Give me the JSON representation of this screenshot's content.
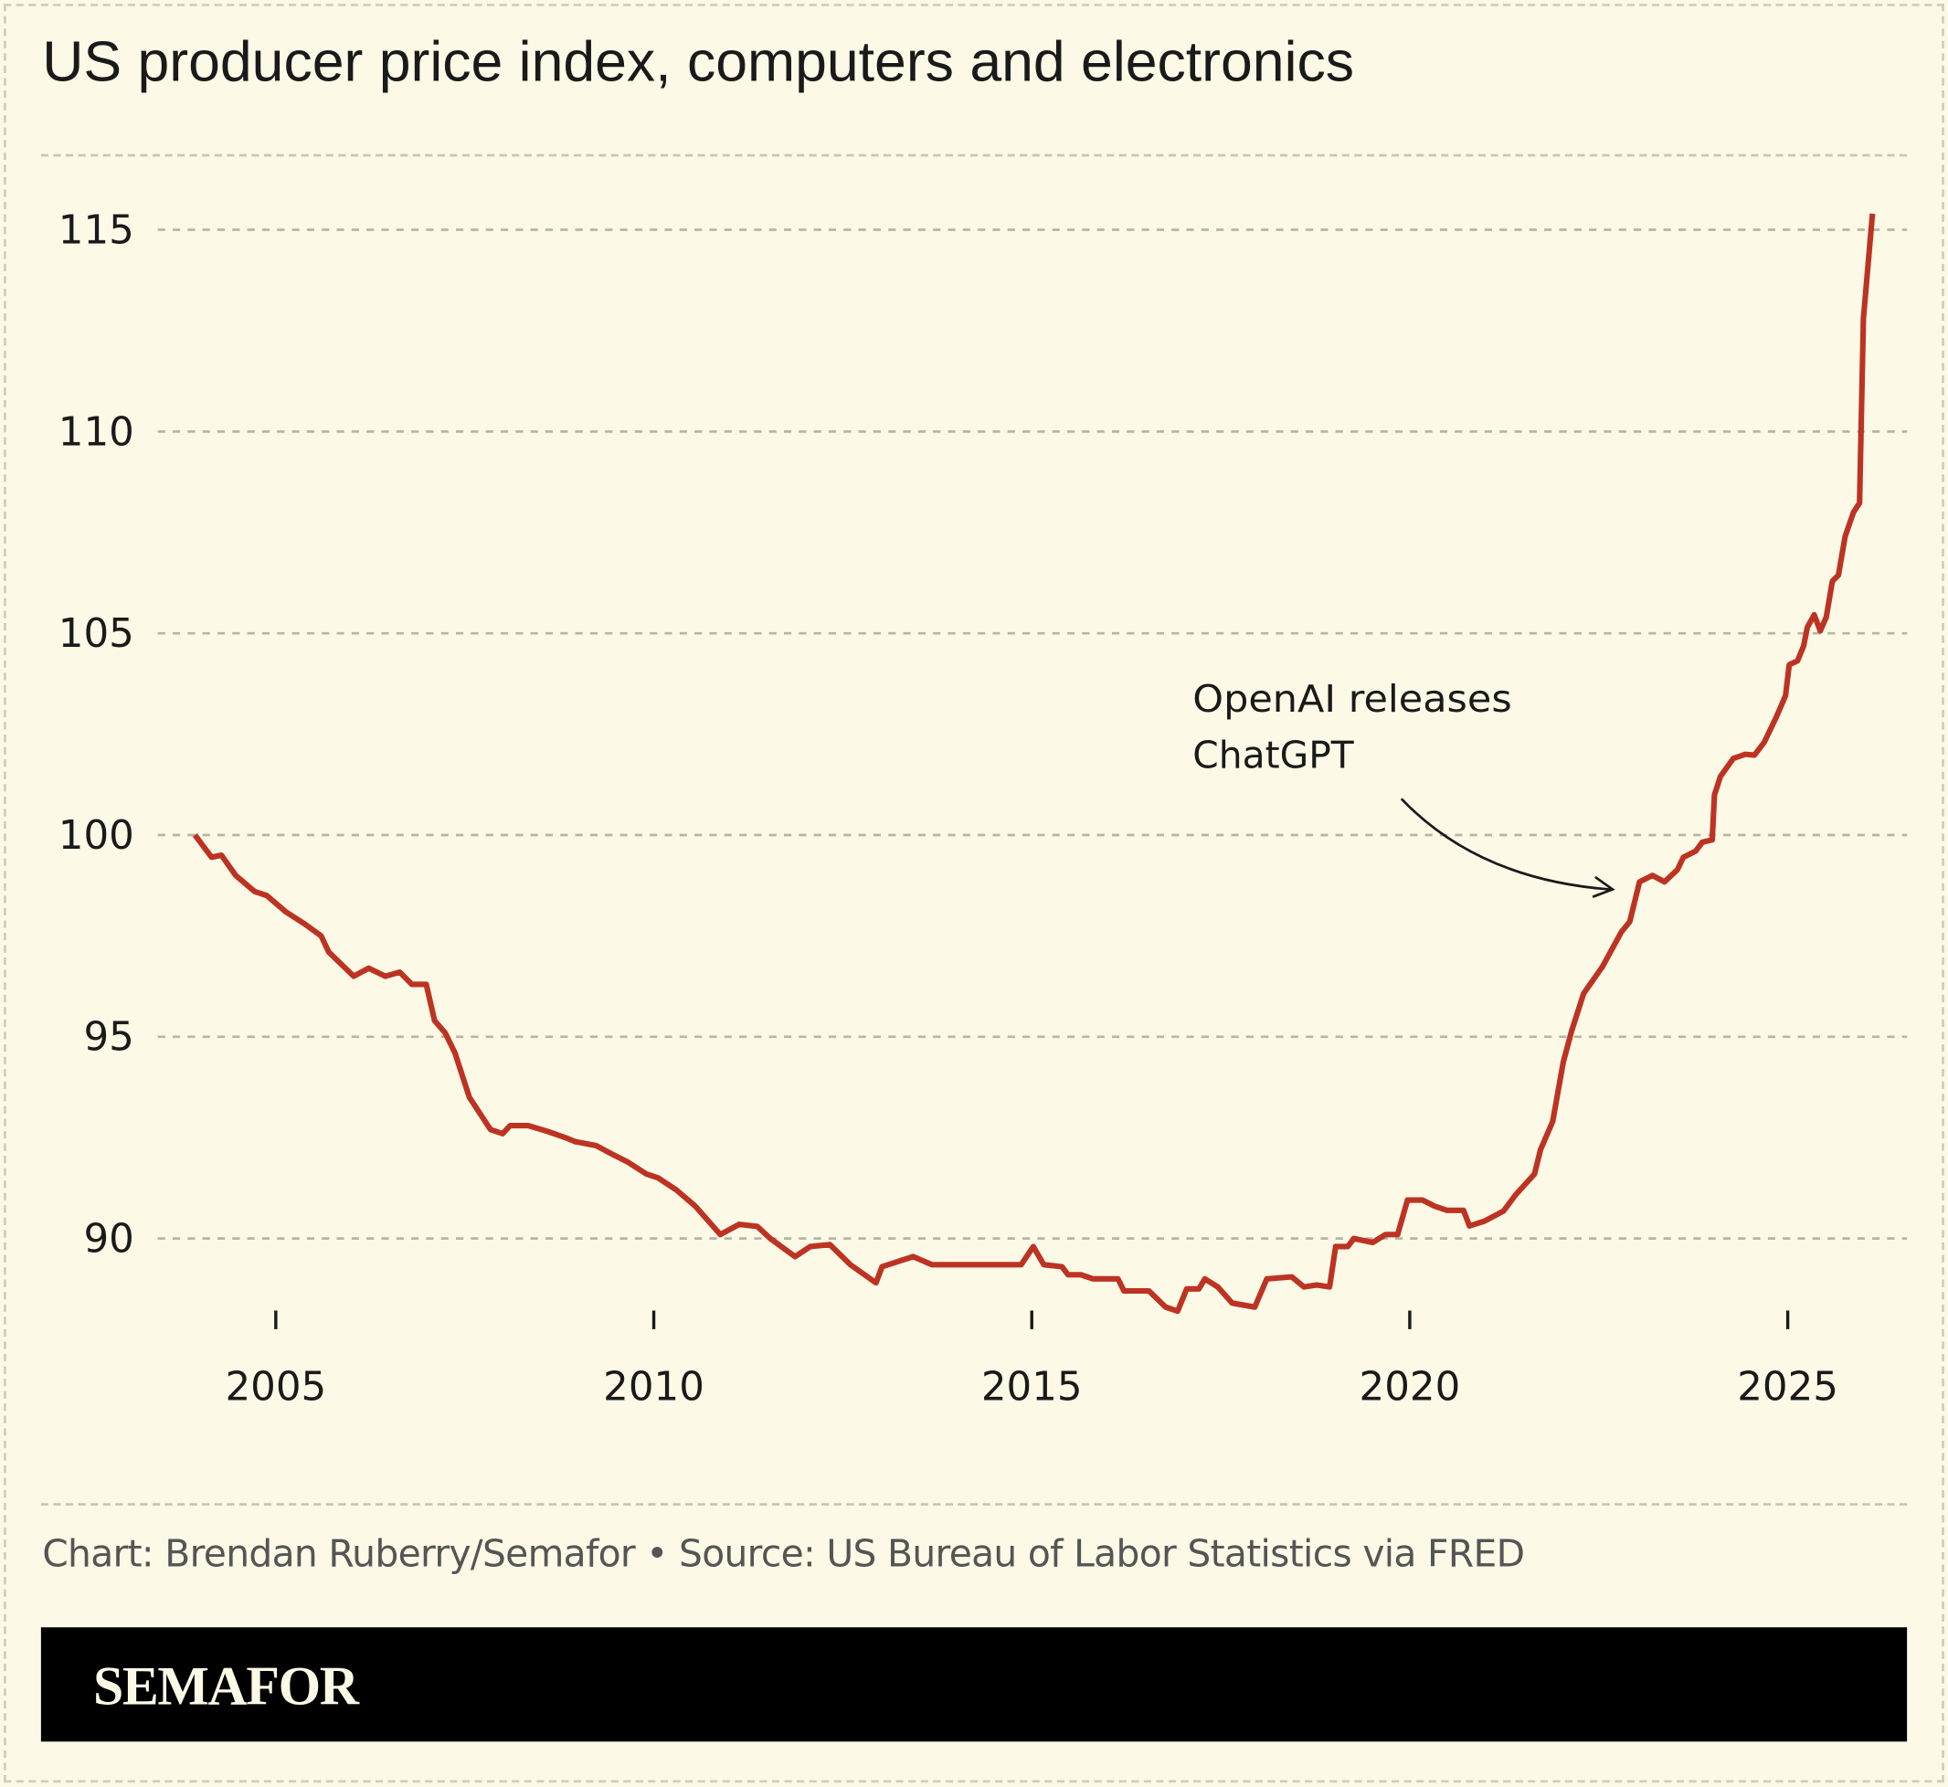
{
  "title": "US producer price index, computers and electronics",
  "footer": "Chart: Brendan Ruberry/Semafor • Source: US Bureau of Labor Statistics via FRED",
  "brand": "SEMAFOR",
  "colors": {
    "background": "#fcf9e6",
    "line": "#bd3323",
    "grid": "#b8b5a6",
    "text": "#1a1a1a"
  },
  "chart_data": {
    "type": "line",
    "title": "US producer price index, computers and electronics",
    "xlabel": "",
    "ylabel": "",
    "xlim": [
      2003.5,
      2026.5
    ],
    "ylim": [
      87.5,
      116.5
    ],
    "grid": "horizontal dashed",
    "x_ticks": [
      "2005",
      "2010",
      "2015",
      "2020",
      "2025"
    ],
    "y_ticks": [
      "90",
      "95",
      "100",
      "105",
      "110",
      "115"
    ],
    "annotation": {
      "text_lines": [
        "OpenAI releases",
        "ChatGPT"
      ],
      "points_to": [
        2023.0,
        98.5
      ]
    },
    "series": [
      {
        "x": [
          2003.93,
          2004.15,
          2004.28,
          2004.47,
          2004.72,
          2004.88,
          2005.13,
          2005.38,
          2005.6,
          2005.7,
          2006.03,
          2006.23,
          2006.45,
          2006.64,
          2006.8,
          2006.99,
          2007.1,
          2007.24,
          2007.37,
          2007.56,
          2007.84,
          2008.0,
          2008.1,
          2008.34,
          2008.6,
          2008.83,
          2008.96,
          2009.24,
          2009.44,
          2009.65,
          2009.9,
          2010.06,
          2010.3,
          2010.55,
          2010.88,
          2011.13,
          2011.37,
          2011.54,
          2011.87,
          2012.07,
          2012.33,
          2012.6,
          2012.94,
          2013.02,
          2013.43,
          2013.68,
          2014.66,
          2014.86,
          2015.02,
          2015.16,
          2015.4,
          2015.48,
          2015.65,
          2015.81,
          2016.14,
          2016.22,
          2016.55,
          2016.77,
          2016.93,
          2017.05,
          2017.21,
          2017.29,
          2017.46,
          2017.65,
          2017.95,
          2018.11,
          2018.44,
          2018.6,
          2018.77,
          2018.94,
          2019.02,
          2019.18,
          2019.26,
          2019.51,
          2019.68,
          2019.84,
          2019.97,
          2020.17,
          2020.33,
          2020.49,
          2020.71,
          2020.79,
          2020.99,
          2021.24,
          2021.4,
          2021.65,
          2021.73,
          2021.89,
          2022.03,
          2022.14,
          2022.3,
          2022.55,
          2022.8,
          2022.91,
          2023.04,
          2023.21,
          2023.37,
          2023.54,
          2023.62,
          2023.78,
          2023.87,
          2024.0,
          2024.03,
          2024.11,
          2024.28,
          2024.44,
          2024.56,
          2024.69,
          2024.85,
          2024.97,
          2025.02,
          2025.13,
          2025.21,
          2025.26,
          2025.35,
          2025.43,
          2025.51,
          2025.59,
          2025.67,
          2025.76,
          2025.87,
          2025.95,
          2026.0,
          2026.12
        ],
        "values": [
          100.0,
          99.45,
          99.5,
          99.0,
          98.6,
          98.5,
          98.1,
          97.8,
          97.5,
          97.1,
          96.5,
          96.7,
          96.5,
          96.6,
          96.3,
          96.3,
          95.4,
          95.1,
          94.6,
          93.5,
          92.7,
          92.6,
          92.8,
          92.8,
          92.65,
          92.5,
          92.4,
          92.3,
          92.1,
          91.9,
          91.6,
          91.5,
          91.2,
          90.8,
          90.1,
          90.35,
          90.3,
          90.0,
          89.55,
          89.8,
          89.85,
          89.35,
          88.9,
          89.3,
          89.55,
          89.35,
          89.35,
          89.35,
          89.8,
          89.35,
          89.3,
          89.1,
          89.1,
          89.0,
          89.0,
          88.7,
          88.7,
          88.3,
          88.2,
          88.75,
          88.75,
          89.0,
          88.8,
          88.4,
          88.3,
          89.0,
          89.05,
          88.8,
          88.85,
          88.8,
          89.8,
          89.8,
          90.0,
          89.9,
          90.1,
          90.1,
          90.95,
          90.95,
          90.8,
          90.7,
          90.7,
          90.31,
          90.43,
          90.68,
          91.08,
          91.6,
          92.2,
          92.9,
          94.37,
          95.14,
          96.07,
          96.74,
          97.6,
          97.85,
          98.84,
          99.0,
          98.84,
          99.14,
          99.45,
          99.6,
          99.82,
          99.88,
          100.99,
          101.45,
          101.9,
          102.0,
          101.98,
          102.3,
          102.93,
          103.45,
          104.22,
          104.32,
          104.69,
          105.15,
          105.46,
          105.06,
          105.4,
          106.29,
          106.44,
          107.4,
          108.0,
          108.23,
          112.8,
          115.4
        ]
      }
    ]
  }
}
